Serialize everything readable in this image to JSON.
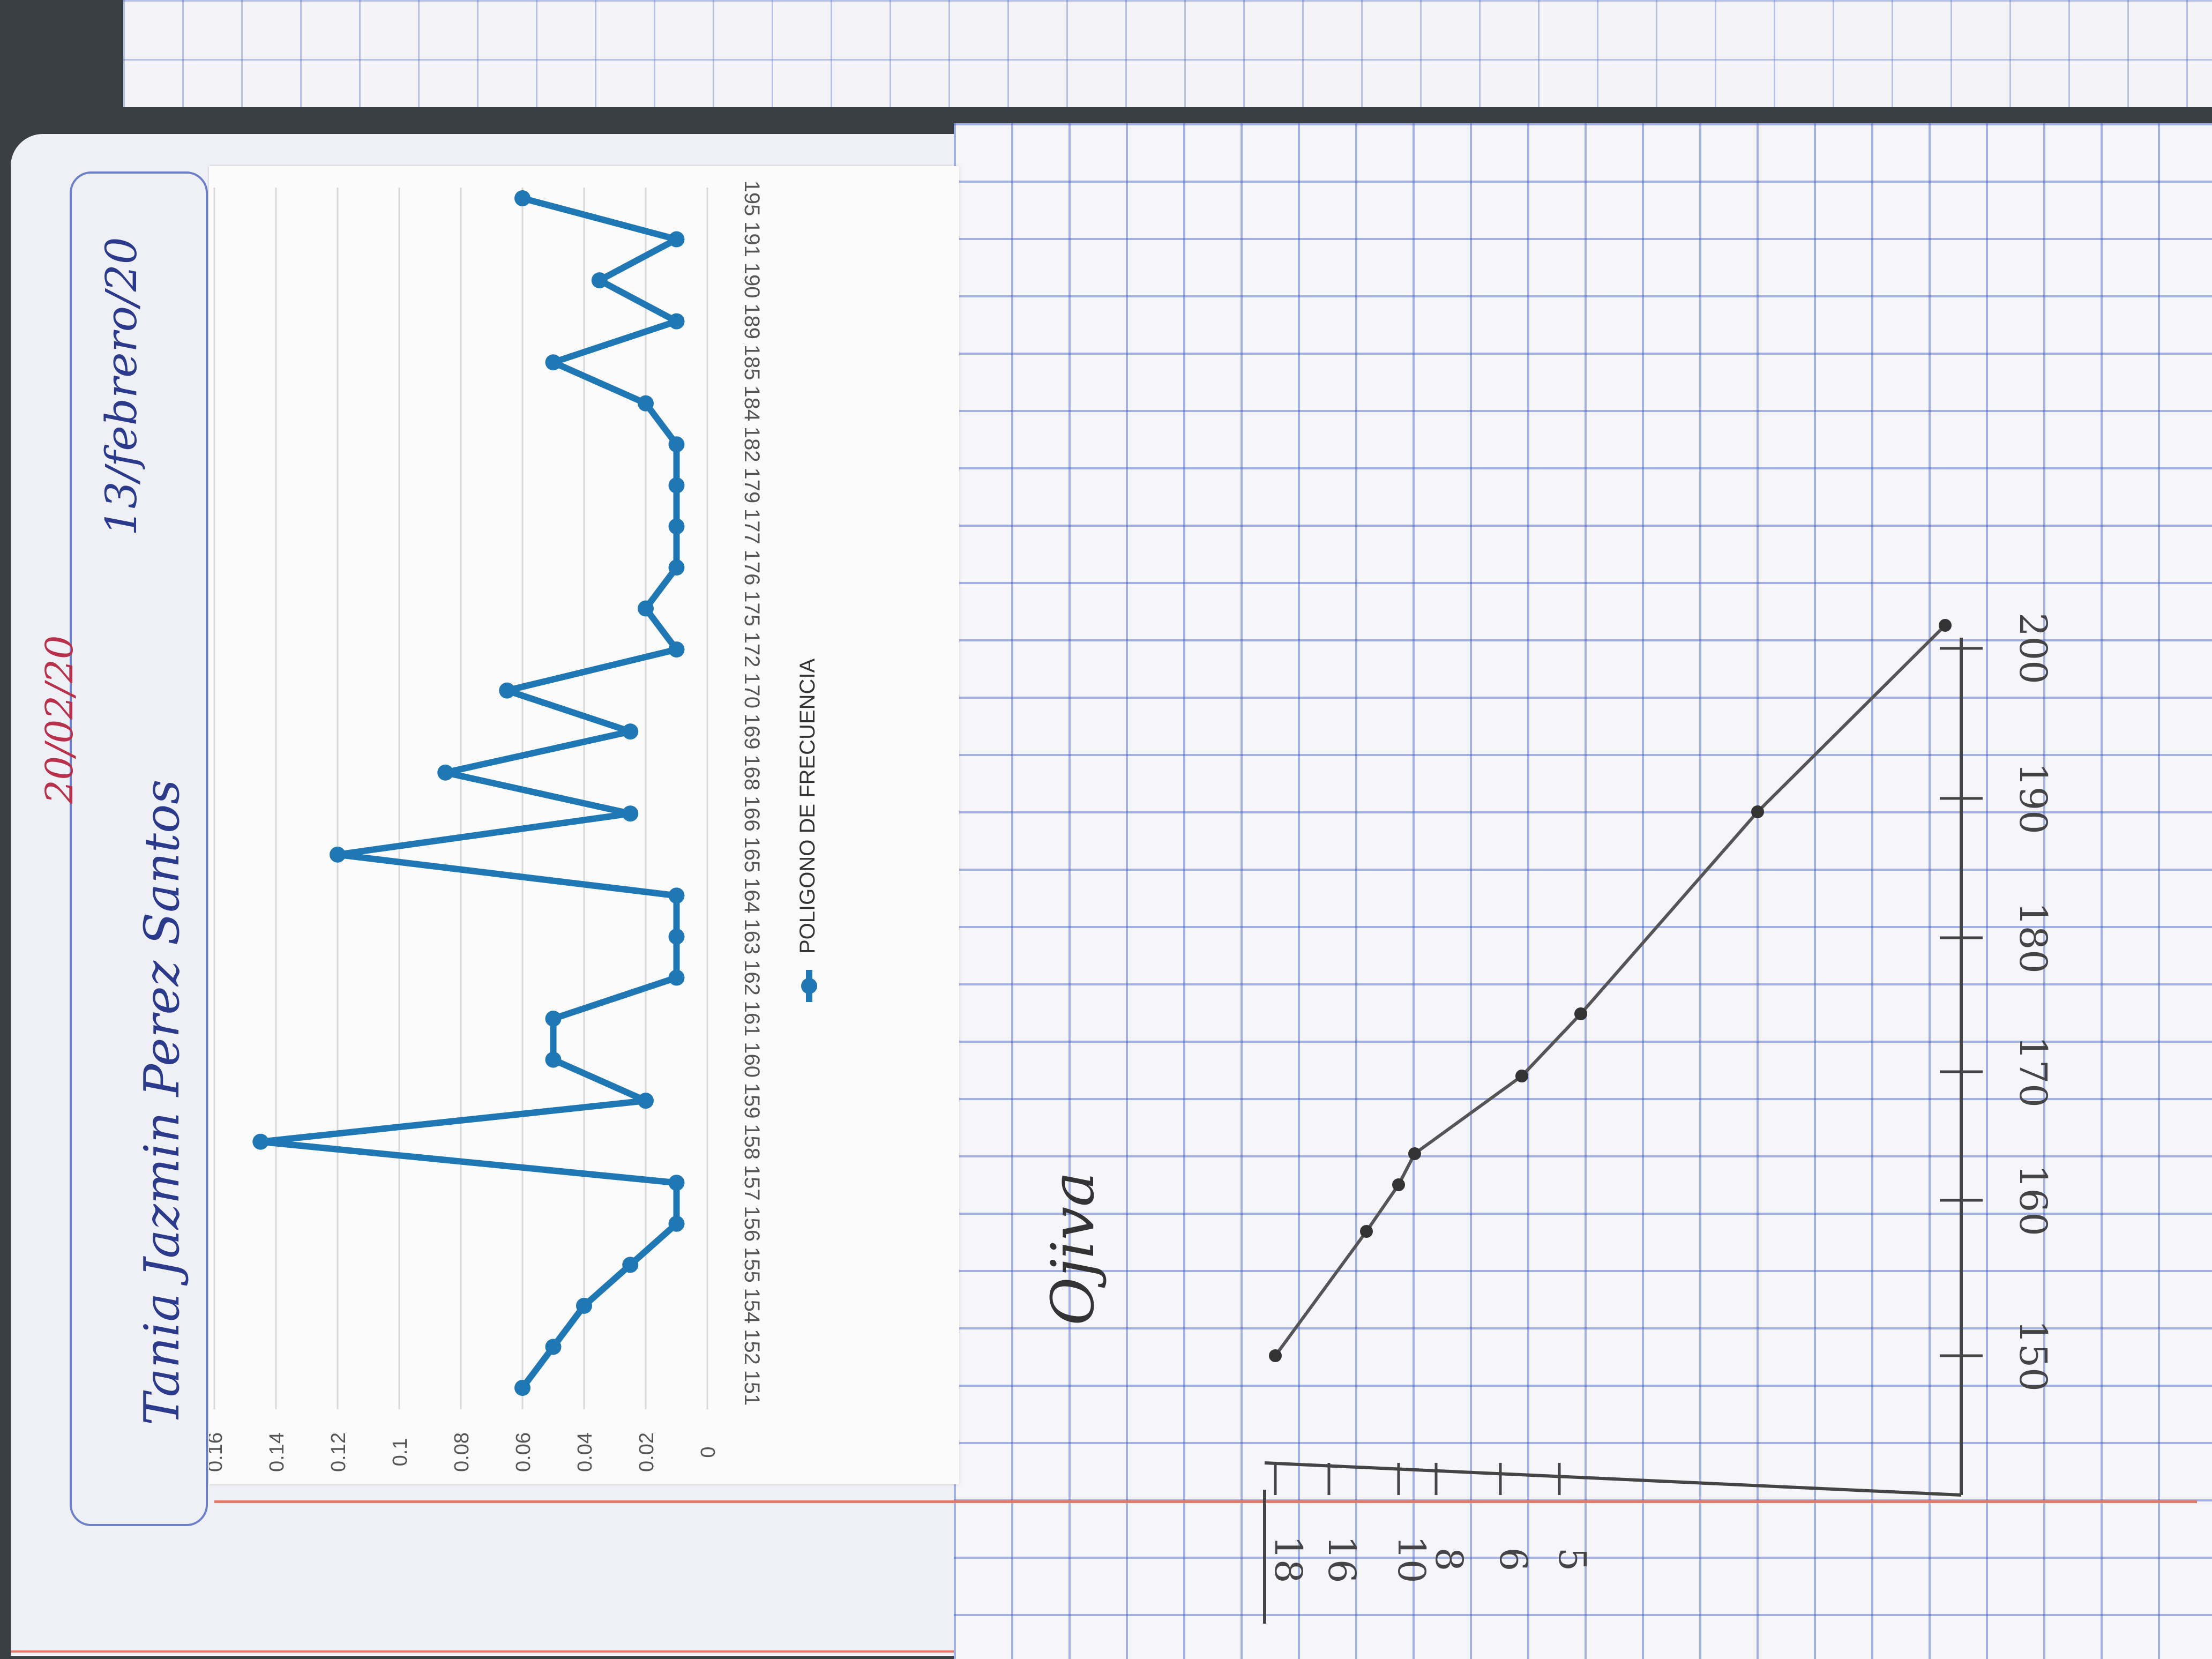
{
  "handwriting": {
    "name": "Tania Jazmin Perez Santos",
    "date": "13/febrero/20",
    "teacher_mark": "20/02/20",
    "ogive_title": "Ojiva"
  },
  "chart_data": [
    {
      "type": "line",
      "title": "",
      "xlabel": "",
      "ylabel": "",
      "categories": [
        "151",
        "152",
        "154",
        "155",
        "156",
        "157",
        "158",
        "159",
        "160",
        "161",
        "162",
        "163",
        "164",
        "165",
        "166",
        "168",
        "169",
        "170",
        "172",
        "175",
        "176",
        "177",
        "179",
        "182",
        "184",
        "185",
        "189",
        "190",
        "191",
        "195"
      ],
      "series": [
        {
          "name": "POLIGONO DE FRECUENCIA",
          "values": [
            0.06,
            0.05,
            0.04,
            0.025,
            0.01,
            0.01,
            0.145,
            0.02,
            0.05,
            0.05,
            0.01,
            0.01,
            0.01,
            0.12,
            0.025,
            0.085,
            0.025,
            0.065,
            0.01,
            0.02,
            0.01,
            0.01,
            0.01,
            0.01,
            0.02,
            0.05,
            0.01,
            0.035,
            0.01,
            0.06
          ]
        }
      ],
      "ylim": [
        0,
        0.16
      ],
      "yticks": [
        "0",
        "0.02",
        "0.04",
        "0.06",
        "0.08",
        "0.1",
        "0.12",
        "0.14",
        "0.16"
      ],
      "grid": true,
      "legend": "bottom",
      "color": "#1f77b4"
    },
    {
      "type": "line",
      "title": "Ojiva",
      "x_tick_labels": [
        "150",
        "160",
        "170",
        "180",
        "190",
        "200"
      ],
      "y_tick_labels": [
        "18",
        "16",
        "10",
        "8",
        "6",
        "5"
      ],
      "points_x": [
        150,
        158,
        161,
        163,
        168,
        172,
        185,
        197
      ],
      "points_y": [
        18,
        16,
        10,
        8,
        6,
        5,
        3,
        1
      ],
      "color": "#555555"
    }
  ]
}
